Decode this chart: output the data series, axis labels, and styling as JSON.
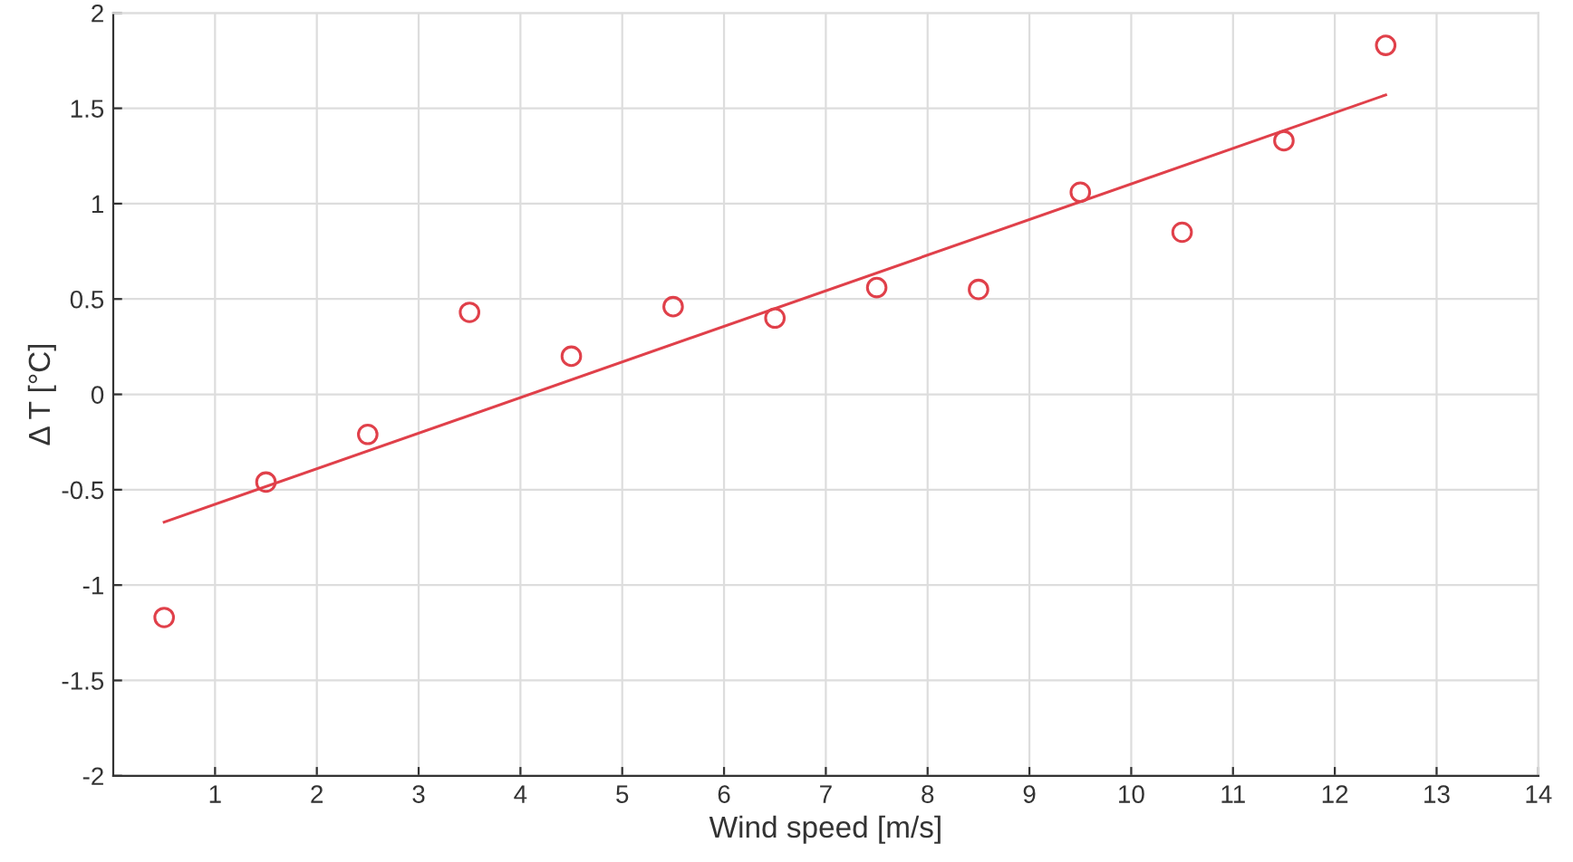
{
  "chart_data": {
    "type": "scatter",
    "xlabel": "Wind speed [m/s]",
    "ylabel": "Δ T [°C]",
    "xlim": [
      0,
      14
    ],
    "xticks": [
      1,
      2,
      3,
      4,
      5,
      6,
      7,
      8,
      9,
      10,
      11,
      12,
      13,
      14
    ],
    "ylim": [
      -2,
      2
    ],
    "yticks": [
      -2,
      -1.5,
      -1,
      -0.5,
      0,
      0.5,
      1,
      1.5,
      2
    ],
    "grid": true,
    "series": [
      {
        "marker": "circle",
        "color": "#e0404a",
        "x": [
          0.5,
          1.5,
          2.5,
          3.5,
          4.5,
          5.5,
          6.5,
          7.5,
          8.5,
          9.5,
          10.5,
          11.5,
          12.5
        ],
        "values": [
          -1.17,
          -0.46,
          -0.21,
          0.43,
          0.2,
          0.46,
          0.4,
          0.56,
          0.55,
          1.06,
          0.85,
          1.33,
          1.83
        ]
      },
      {
        "type": "line",
        "color": "#e0404a",
        "line_style": "solid",
        "x": [
          0.5,
          12.5
        ],
        "values": [
          -0.67,
          1.57
        ]
      }
    ]
  }
}
